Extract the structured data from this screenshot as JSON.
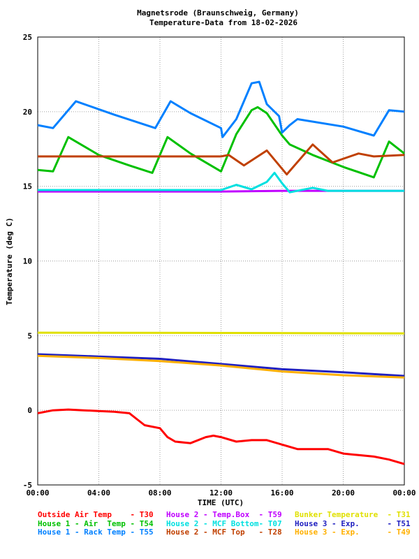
{
  "chart_data": {
    "type": "line",
    "title": [
      "Magnetsrode (Braunschweig, Germany)",
      "Temperature-Data from 18-02-2026"
    ],
    "xlabel": "TIME (UTC)",
    "ylabel": "Temperature (deg C)",
    "xlim": [
      0,
      24
    ],
    "ylim": [
      -5,
      25
    ],
    "xticks": [
      0,
      4,
      8,
      12,
      16,
      20,
      24
    ],
    "xtick_labels": [
      "00:00",
      "04:00",
      "08:00",
      "12:00",
      "16:00",
      "20:00",
      "00:00"
    ],
    "yticks": [
      -5,
      0,
      5,
      10,
      15,
      20,
      25
    ],
    "ytick_labels": [
      "-5",
      "0",
      "5",
      "10",
      "15",
      "20",
      "25"
    ],
    "grid": true,
    "legend_placement": "bottom",
    "series": [
      {
        "name": "Outside Air Temp",
        "sensor": "T30",
        "color": "#ff0000",
        "x": [
          0,
          1,
          2,
          3,
          4,
          5,
          6,
          6.5,
          7,
          8,
          8.5,
          9,
          10,
          11,
          11.5,
          12,
          13,
          14,
          15,
          16,
          17,
          18,
          19,
          20,
          21,
          22,
          23,
          24
        ],
        "y": [
          -0.2,
          0,
          0.05,
          0,
          -0.05,
          -0.1,
          -0.2,
          -0.6,
          -1.0,
          -1.2,
          -1.8,
          -2.1,
          -2.2,
          -1.8,
          -1.7,
          -1.8,
          -2.1,
          -2.0,
          -2.0,
          -2.3,
          -2.6,
          -2.6,
          -2.6,
          -2.9,
          -3.0,
          -3.1,
          -3.3,
          -3.6
        ]
      },
      {
        "name": "House 2 - Temp.Box",
        "sensor": "T59",
        "color": "#c000ff",
        "x": [
          0,
          12,
          16,
          24
        ],
        "y": [
          14.65,
          14.65,
          14.7,
          14.7
        ]
      },
      {
        "name": "Bunker Temperature",
        "sensor": "T31",
        "color": "#e0e000",
        "x": [
          0,
          12,
          24
        ],
        "y": [
          5.2,
          5.18,
          5.15
        ]
      },
      {
        "name": "House 1 - Air  Temp",
        "sensor": "T54",
        "color": "#00c000",
        "x": [
          0,
          1,
          2,
          4,
          6,
          7.5,
          8.5,
          10,
          12,
          13,
          14,
          14.4,
          15,
          16,
          16.5,
          18,
          20,
          22,
          23,
          24
        ],
        "y": [
          16.1,
          16.0,
          18.3,
          17.1,
          16.4,
          15.9,
          18.3,
          17.2,
          16.0,
          18.5,
          20.1,
          20.3,
          19.9,
          18.4,
          17.8,
          17.1,
          16.3,
          15.6,
          18.0,
          17.2
        ]
      },
      {
        "name": "House 2 - MCF Bottom",
        "sensor": "T07",
        "color": "#00e0e0",
        "x": [
          0,
          12,
          13,
          14,
          15,
          15.5,
          16,
          16.5,
          18,
          19,
          24
        ],
        "y": [
          14.75,
          14.75,
          15.1,
          14.8,
          15.3,
          15.9,
          15.2,
          14.6,
          14.9,
          14.7,
          14.7
        ]
      },
      {
        "name": "House 3 - Exp.",
        "sensor": "T51",
        "color": "#2020c0",
        "x": [
          0,
          4,
          8,
          12,
          16,
          20,
          24
        ],
        "y": [
          3.75,
          3.6,
          3.45,
          3.1,
          2.75,
          2.55,
          2.3
        ]
      },
      {
        "name": "House 1 - Rack Temp",
        "sensor": "T55",
        "color": "#0080ff",
        "x": [
          0,
          1,
          2.5,
          5,
          7.7,
          8.7,
          10,
          12,
          12.1,
          13,
          14,
          14.5,
          15,
          15.8,
          16,
          16.5,
          17,
          20,
          22,
          23,
          24
        ],
        "y": [
          19.1,
          18.9,
          20.7,
          19.8,
          18.9,
          20.7,
          19.9,
          18.9,
          18.3,
          19.5,
          21.9,
          22.0,
          20.5,
          19.7,
          18.6,
          19.1,
          19.5,
          19.0,
          18.4,
          20.1,
          20.0
        ]
      },
      {
        "name": "House 2 - MCF Top",
        "sensor": "T28",
        "color": "#c04000",
        "x": [
          0,
          6,
          12,
          12.5,
          13.5,
          15,
          16.3,
          18,
          19.3,
          21,
          22,
          24
        ],
        "y": [
          17.0,
          17.0,
          17.0,
          17.1,
          16.4,
          17.4,
          15.8,
          17.8,
          16.6,
          17.2,
          17.0,
          17.1
        ]
      },
      {
        "name": "House 3 - Exp.",
        "sensor": "T49",
        "color": "#ffb000",
        "x": [
          0,
          4,
          8,
          12,
          16,
          20,
          24
        ],
        "y": [
          3.65,
          3.5,
          3.3,
          3.0,
          2.6,
          2.35,
          2.2
        ]
      }
    ],
    "legend": [
      {
        "label": "Outside Air Temp    - T30",
        "color": "#ff0000"
      },
      {
        "label": "House 2 - Temp.Box  - T59",
        "color": "#c000ff"
      },
      {
        "label": "Bunker Temperature  - T31",
        "color": "#e0e000"
      },
      {
        "label": "House 1 - Air  Temp - T54",
        "color": "#00c000"
      },
      {
        "label": "House 2 - MCF Bottom- T07",
        "color": "#00e0e0"
      },
      {
        "label": "House 3 - Exp.      - T51",
        "color": "#2020c0"
      },
      {
        "label": "House 1 - Rack Temp - T55",
        "color": "#0080ff"
      },
      {
        "label": "House 2 - MCF Top   - T28",
        "color": "#c04000"
      },
      {
        "label": "House 3 - Exp.      - T49",
        "color": "#ffb000"
      }
    ]
  }
}
